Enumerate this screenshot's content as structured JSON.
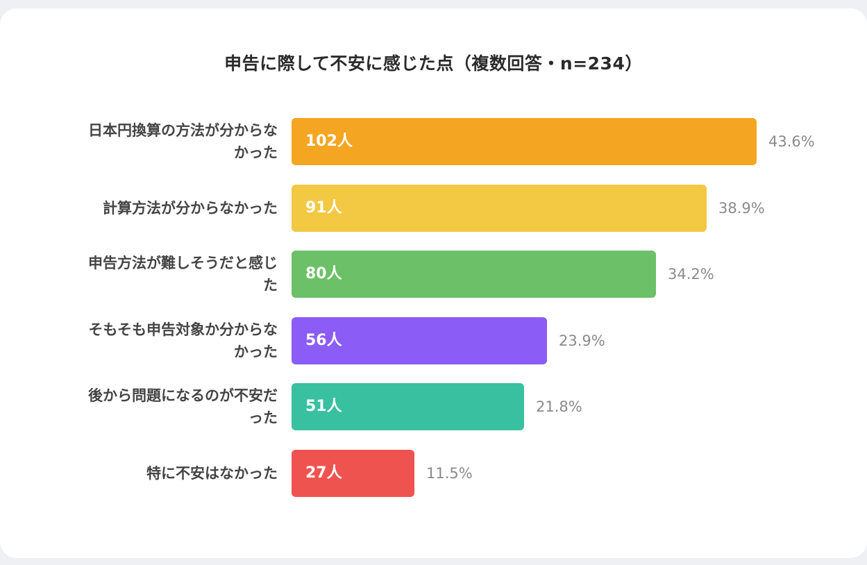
{
  "chart_data": {
    "type": "bar",
    "orientation": "horizontal",
    "title": "申告に際して不安に感じた点（複数回答・n=234）",
    "categories": [
      "日本円換算の方法が分からなかった",
      "計算方法が分からなかった",
      "申告方法が難しそうだと感じた",
      "そもそも申告対象か分からなかった",
      "後から問題になるのが不安だった",
      "特に不安はなかった"
    ],
    "category_lines": [
      [
        "日本円換算の方法が分からな",
        "かった"
      ],
      [
        "計算方法が分からなかった"
      ],
      [
        "申告方法が難しそうだと感じ",
        "た"
      ],
      [
        "そもそも申告対象か分からな",
        "かった"
      ],
      [
        "後から問題になるのが不安だ",
        "った"
      ],
      [
        "特に不安はなかった"
      ]
    ],
    "values": [
      102,
      91,
      80,
      56,
      51,
      27
    ],
    "value_labels": [
      "102人",
      "91人",
      "80人",
      "56人",
      "51人",
      "27人"
    ],
    "percent_labels": [
      "43.6%",
      "38.9%",
      "34.2%",
      "23.9%",
      "21.8%",
      "11.5%"
    ],
    "colors": [
      "#f4a623",
      "#f3c843",
      "#6cc067",
      "#8b5cf6",
      "#38c0a0",
      "#ef5350"
    ],
    "grid": false,
    "legend": "none"
  }
}
